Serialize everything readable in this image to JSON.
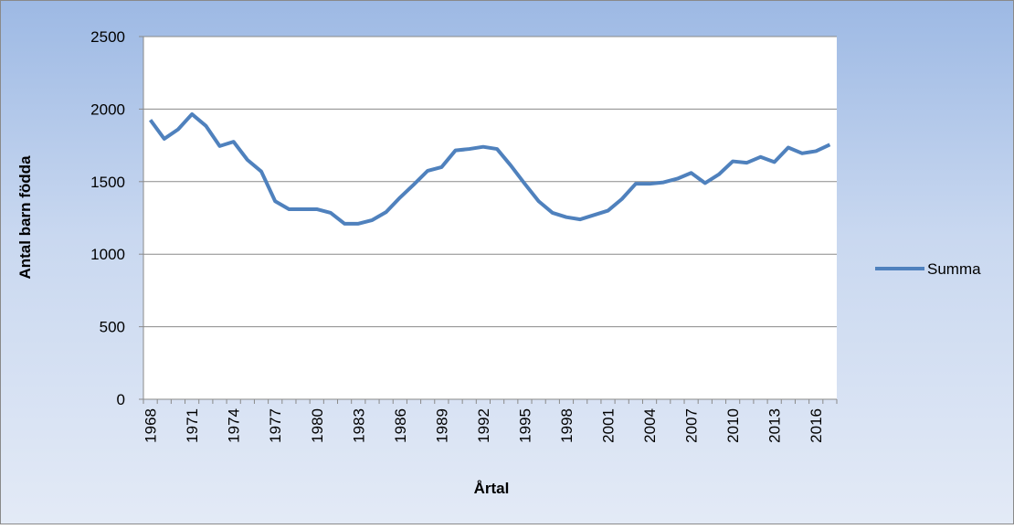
{
  "chart_data": {
    "type": "line",
    "y_label": "Antal barn födda",
    "x_label": "Årtal",
    "categories": [
      "1968",
      null,
      null,
      "1971",
      null,
      null,
      "1974",
      null,
      null,
      "1977",
      null,
      null,
      "1980",
      null,
      null,
      "1983",
      null,
      null,
      "1986",
      null,
      null,
      "1989",
      null,
      null,
      "1992",
      null,
      null,
      "1995",
      null,
      null,
      "1998",
      null,
      null,
      "2001",
      null,
      null,
      "2004",
      null,
      null,
      "2007",
      null,
      null,
      "2010",
      null,
      null,
      "2013",
      null,
      null,
      "2016",
      null
    ],
    "series": [
      {
        "name": "Summa",
        "color": "#4f81bd",
        "values": [
          1925,
          1795,
          1860,
          1965,
          1885,
          1745,
          1775,
          1650,
          1570,
          1365,
          1310,
          1310,
          1310,
          1285,
          1210,
          1210,
          1235,
          1290,
          1390,
          1480,
          1575,
          1600,
          1715,
          1725,
          1740,
          1725,
          1610,
          1485,
          1365,
          1285,
          1255,
          1240,
          1270,
          1300,
          1380,
          1485,
          1485,
          1495,
          1520,
          1560,
          1490,
          1550,
          1640,
          1630,
          1670,
          1635,
          1735,
          1695,
          1710,
          1755
        ]
      }
    ],
    "ylim": [
      0,
      2500
    ],
    "yticks": [
      0,
      500,
      1000,
      1500,
      2000,
      2500
    ],
    "grid": true,
    "legend": "right"
  }
}
